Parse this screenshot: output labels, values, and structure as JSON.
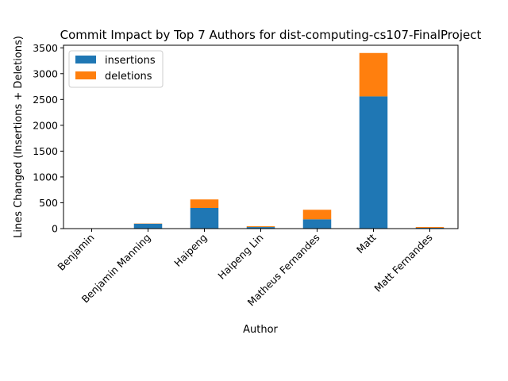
{
  "chart_data": {
    "type": "bar",
    "stacked": true,
    "title": "Commit Impact by Top 7 Authors for dist-computing-cs107-FinalProject",
    "xlabel": "Author",
    "ylabel": "Lines Changed (Insertions + Deletions)",
    "ylim": [
      0,
      3550
    ],
    "yticks": [
      0,
      500,
      1000,
      1500,
      2000,
      2500,
      3000,
      3500
    ],
    "grid": false,
    "legend_position": "top-left",
    "categories": [
      "Benjamin",
      "Benjamin Manning",
      "Haipeng",
      "Haipeng Lin",
      "Matheus Fernandes",
      "Matt",
      "Matt Fernandes"
    ],
    "series": [
      {
        "name": "insertions",
        "color": "#1f77b4",
        "values": [
          2,
          95,
          400,
          30,
          180,
          2560,
          15
        ]
      },
      {
        "name": "deletions",
        "color": "#ff7f0e",
        "values": [
          0,
          5,
          165,
          15,
          185,
          840,
          15
        ]
      }
    ]
  }
}
